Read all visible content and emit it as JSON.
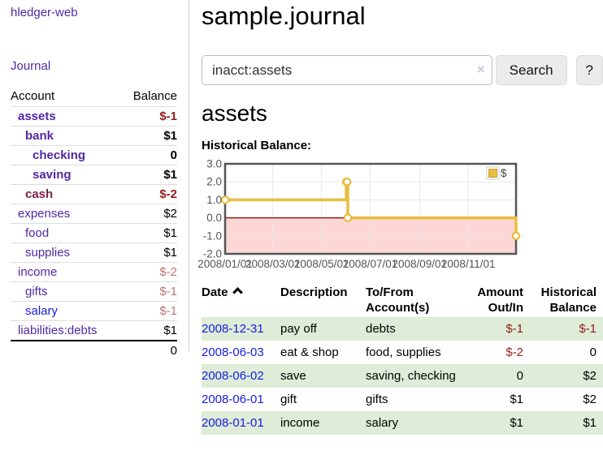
{
  "colors": {
    "link_purple": "#5128a5",
    "link_blue": "#1a1ae0",
    "account_maroon": "#7d1f45",
    "negative_strong": "#961c1c",
    "negative_soft": "#bb7374",
    "row_stripe_green": "#deecd8",
    "chart_line_yellow": "#e9bd3e",
    "chart_negative_pink": "#fcd7d5",
    "chart_zero_line": "#8b0000"
  },
  "sidebar": {
    "title": "hledger-web",
    "nav_journal": "Journal",
    "accounts": {
      "header_account": "Account",
      "header_balance": "Balance",
      "rows": [
        {
          "name": "assets",
          "balance": "$-1"
        },
        {
          "name": "bank",
          "balance": "$1"
        },
        {
          "name": "checking",
          "balance": "0"
        },
        {
          "name": "saving",
          "balance": "$1"
        },
        {
          "name": "cash",
          "balance": "$-2"
        },
        {
          "name": "expenses",
          "balance": "$2"
        },
        {
          "name": "food",
          "balance": "$1"
        },
        {
          "name": "supplies",
          "balance": "$1"
        },
        {
          "name": "income",
          "balance": "$-2"
        },
        {
          "name": "gifts",
          "balance": "$-1"
        },
        {
          "name": "salary",
          "balance": "$-1"
        },
        {
          "name": "liabilities:debts",
          "balance": "$1"
        }
      ],
      "total": "0"
    }
  },
  "main": {
    "title": "sample.journal",
    "search": {
      "value": "inacct:assets",
      "clear_icon": "×",
      "search_button": "Search",
      "help_button": "?"
    },
    "account_heading": "assets",
    "chart_heading": "Historical Balance:"
  },
  "chart_data": {
    "type": "line",
    "step": true,
    "title": "Historical Balance:",
    "x_range": [
      "2008-01-01",
      "2008-12-31"
    ],
    "x_tick_labels": [
      "2008/01/01",
      "2008/03/01",
      "2008/05/01",
      "2008/07/01",
      "2008/09/01",
      "2008/11/01"
    ],
    "ylim": [
      -2,
      3
    ],
    "y_ticks": [
      3.0,
      2.0,
      1.0,
      0.0,
      -1.0,
      -2.0
    ],
    "grid": true,
    "legend_position": "top-right",
    "legend": [
      {
        "label": "$",
        "color": "#e9bd3e"
      }
    ],
    "negative_region_fill": "#fcd7d5",
    "zero_line_color": "#8b0000",
    "series": [
      {
        "name": "$",
        "color": "#e9bd3e",
        "points": [
          [
            "2008-01-01",
            1
          ],
          [
            "2008-06-01",
            2
          ],
          [
            "2008-06-02",
            2
          ],
          [
            "2008-06-03",
            0
          ],
          [
            "2008-12-31",
            -1
          ]
        ]
      }
    ]
  },
  "register": {
    "headers": {
      "date": "Date",
      "description": "Description",
      "accounts": "To/From Account(s)",
      "amount": "Amount Out/In",
      "balance": "Historical Balance"
    },
    "rows": [
      {
        "date": "2008-12-31",
        "description": "pay off",
        "accounts": "debts",
        "amount": "$-1",
        "balance": "$-1"
      },
      {
        "date": "2008-06-03",
        "description": "eat & shop",
        "accounts": "food, supplies",
        "amount": "$-2",
        "balance": "0"
      },
      {
        "date": "2008-06-02",
        "description": "save",
        "accounts": "saving, checking",
        "amount": "0",
        "balance": "$2"
      },
      {
        "date": "2008-06-01",
        "description": "gift",
        "accounts": "gifts",
        "amount": "$1",
        "balance": "$2"
      },
      {
        "date": "2008-01-01",
        "description": "income",
        "accounts": "salary",
        "amount": "$1",
        "balance": "$1"
      }
    ]
  }
}
